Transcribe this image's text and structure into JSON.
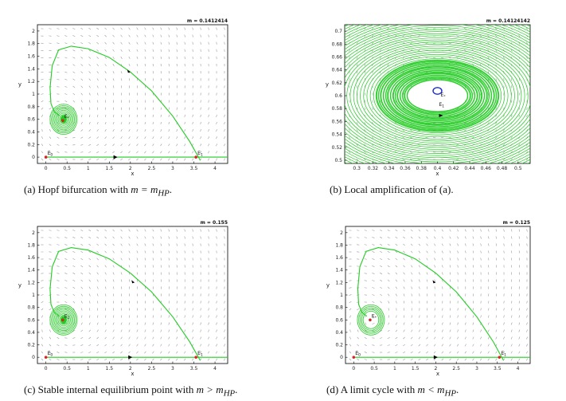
{
  "chart_data": [
    {
      "type": "phase-portrait",
      "m_label": "m = 0.1412414",
      "xlabel": "x",
      "ylabel": "y",
      "xlim": [
        -0.2,
        4.3
      ],
      "ylim": [
        -0.1,
        2.1
      ],
      "xticks": [
        "0",
        "0.5",
        "1",
        "1.5",
        "2",
        "2.5",
        "3",
        "3.5",
        "4"
      ],
      "xtick_values": [
        0,
        0.5,
        1,
        1.5,
        2,
        2.5,
        3,
        3.5,
        4
      ],
      "yticks": [
        "0",
        "0.2",
        "0.4",
        "0.6",
        "0.8",
        "1",
        "1.2",
        "1.4",
        "1.6",
        "1.8",
        "2"
      ],
      "ytick_values": [
        0,
        0.2,
        0.4,
        0.6,
        0.8,
        1,
        1.2,
        1.4,
        1.6,
        1.8,
        2
      ],
      "points": [
        {
          "label": "E0",
          "x": 0,
          "y": 0
        },
        {
          "label": "E1",
          "x": 3.55,
          "y": 0
        },
        {
          "label": "E*",
          "x": 0.4,
          "y": 0.58
        }
      ],
      "trajectory_kind": "spiral-converge",
      "caption_text": "(a) Hopf bifurcation with ",
      "caption_math": "m = m",
      "caption_sub": "HP",
      "caption_end": "."
    },
    {
      "type": "phase-portrait",
      "m_label": "m = 0.14124142",
      "xlabel": "x",
      "ylabel": "y",
      "xlim": [
        0.285,
        0.515
      ],
      "ylim": [
        0.495,
        0.71
      ],
      "xticks": [
        "0.3",
        "0.32",
        "0.34",
        "0.36",
        "0.38",
        "0.4",
        "0.42",
        "0.44",
        "0.46",
        "0.48",
        "0.5"
      ],
      "xtick_values": [
        0.3,
        0.32,
        0.34,
        0.36,
        0.38,
        0.4,
        0.42,
        0.44,
        0.46,
        0.48,
        0.5
      ],
      "yticks": [
        "0.5",
        "0.52",
        "0.54",
        "0.56",
        "0.58",
        "0.6",
        "0.62",
        "0.64",
        "0.66",
        "0.68",
        "0.7"
      ],
      "ytick_values": [
        0.5,
        0.52,
        0.54,
        0.56,
        0.58,
        0.6,
        0.62,
        0.64,
        0.66,
        0.68,
        0.7
      ],
      "points": [
        {
          "label": "E1",
          "x": 0.4,
          "y": 0.58
        },
        {
          "label": "E*",
          "x": 0.402,
          "y": 0.595
        }
      ],
      "trajectory_kind": "zoom-rings",
      "caption_text": "(b) Local amplification of (a).",
      "caption_math": "",
      "caption_sub": "",
      "caption_end": ""
    },
    {
      "type": "phase-portrait",
      "m_label": "m = 0.155",
      "xlabel": "x",
      "ylabel": "y",
      "xlim": [
        -0.2,
        4.3
      ],
      "ylim": [
        -0.1,
        2.1
      ],
      "xticks": [
        "0",
        "0.5",
        "1",
        "1.5",
        "2",
        "2.5",
        "3",
        "3.5",
        "4"
      ],
      "xtick_values": [
        0,
        0.5,
        1,
        1.5,
        2,
        2.5,
        3,
        3.5,
        4
      ],
      "yticks": [
        "0",
        "0.2",
        "0.4",
        "0.6",
        "0.8",
        "1",
        "1.2",
        "1.4",
        "1.6",
        "1.8",
        "2"
      ],
      "ytick_values": [
        0,
        0.2,
        0.4,
        0.6,
        0.8,
        1,
        1.2,
        1.4,
        1.6,
        1.8,
        2
      ],
      "points": [
        {
          "label": "E0",
          "x": 0,
          "y": 0
        },
        {
          "label": "E1",
          "x": 3.55,
          "y": 0
        },
        {
          "label": "E1",
          "x": 0.4,
          "y": 0.6
        }
      ],
      "trajectory_kind": "spiral-converge",
      "caption_text": "(c) Stable internal equilibrium point with ",
      "caption_math": "m > m",
      "caption_sub": "HP",
      "caption_end": "."
    },
    {
      "type": "phase-portrait",
      "m_label": "m = 0.125",
      "xlabel": "x",
      "ylabel": "y",
      "xlim": [
        -0.2,
        4.3
      ],
      "ylim": [
        -0.1,
        2.1
      ],
      "xticks": [
        "0",
        "0.5",
        "1",
        "1.5",
        "2",
        "2.5",
        "3",
        "3.5",
        "4"
      ],
      "xtick_values": [
        0,
        0.5,
        1,
        1.5,
        2,
        2.5,
        3,
        3.5,
        4
      ],
      "yticks": [
        "0",
        "0.2",
        "0.4",
        "0.6",
        "0.8",
        "1",
        "1.2",
        "1.4",
        "1.6",
        "1.8",
        "2"
      ],
      "ytick_values": [
        0,
        0.2,
        0.4,
        0.6,
        0.8,
        1,
        1.2,
        1.4,
        1.6,
        1.8,
        2
      ],
      "points": [
        {
          "label": "E0",
          "x": 0,
          "y": 0
        },
        {
          "label": "E1",
          "x": 3.55,
          "y": 0
        },
        {
          "label": "E*",
          "x": 0.4,
          "y": 0.6
        }
      ],
      "trajectory_kind": "limit-cycle",
      "caption_text": "(d) A limit cycle with ",
      "caption_math": "m < m",
      "caption_sub": "HP",
      "caption_end": "."
    }
  ],
  "colors": {
    "trajectory": "#22cc22",
    "field_arrow": "#9a9a9a",
    "equilibrium": "#dd2222",
    "small_cycle": "#1a2ad0",
    "frame": "#000000"
  }
}
